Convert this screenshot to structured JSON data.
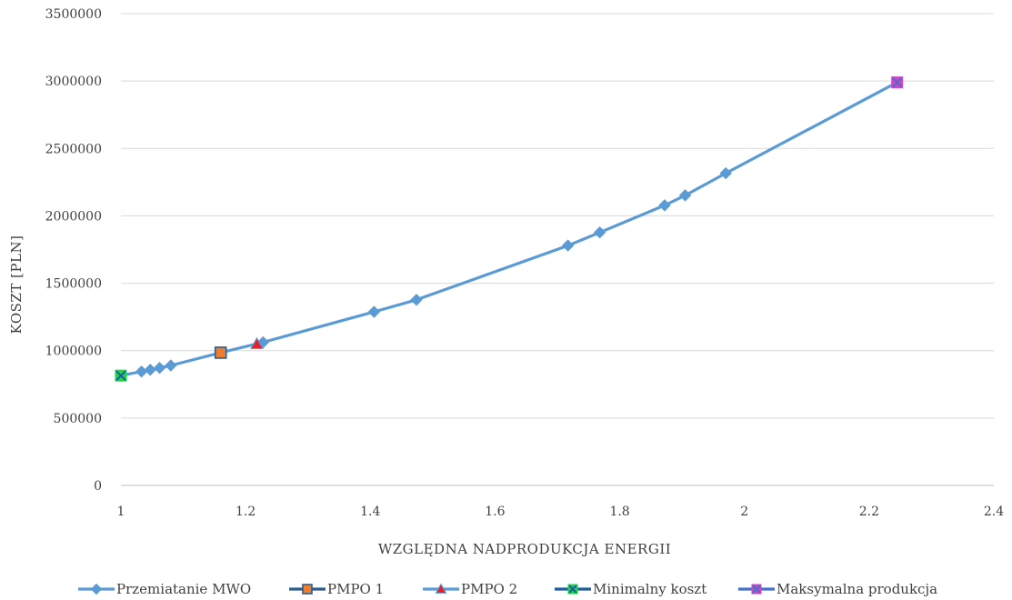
{
  "chart_data": {
    "type": "scatter",
    "xlabel": "WZGLĘDNA NADPRODUKCJA ENERGII",
    "ylabel": "KOSZT [PLN]",
    "xlim": [
      1,
      2.4
    ],
    "ylim": [
      0,
      3500000
    ],
    "x_ticks": [
      "1",
      "1.2",
      "1.4",
      "1.6",
      "1.8",
      "2",
      "2.2",
      "2.4"
    ],
    "y_ticks": [
      "0",
      "500000",
      "1000000",
      "1500000",
      "2000000",
      "2500000",
      "3000000",
      "3500000"
    ],
    "grid": "horizontal",
    "legend_position": "bottom",
    "series": [
      {
        "name": "Przemiatanie MWO",
        "marker": "diamond",
        "color": "#5b9bd5",
        "line": true,
        "points": [
          [
            1.0,
            815000
          ],
          [
            1.033,
            845000
          ],
          [
            1.047,
            858000
          ],
          [
            1.062,
            872000
          ],
          [
            1.08,
            890000
          ],
          [
            1.16,
            985000
          ],
          [
            1.228,
            1062000
          ],
          [
            1.406,
            1288000
          ],
          [
            1.474,
            1377000
          ],
          [
            1.717,
            1780000
          ],
          [
            1.768,
            1877000
          ],
          [
            1.872,
            2078000
          ],
          [
            1.905,
            2152000
          ],
          [
            1.97,
            2316000
          ],
          [
            2.245,
            2990000
          ]
        ]
      },
      {
        "name": "PMPO 1",
        "marker": "square",
        "color": "#ed7d31",
        "edge": "#2e5d8c",
        "points": [
          [
            1.16,
            985000
          ]
        ]
      },
      {
        "name": "PMPO 2",
        "marker": "triangle",
        "color": "#e0242b",
        "edge": "#5b9bd5",
        "points": [
          [
            1.218,
            1050000
          ]
        ]
      },
      {
        "name": "Minimalny koszt",
        "marker": "x-square",
        "color": "#21d64a",
        "edge": "#1f5e9c",
        "points": [
          [
            1.0,
            815000
          ]
        ]
      },
      {
        "name": "Maksymalna produkcja",
        "marker": "x-square",
        "color": "#cc46c8",
        "edge": "#4472c4",
        "points": [
          [
            2.245,
            2990000
          ]
        ]
      }
    ]
  }
}
